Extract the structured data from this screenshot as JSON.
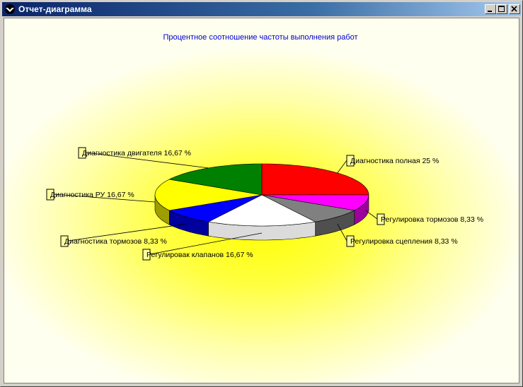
{
  "window": {
    "title": "Отчет-диаграмма"
  },
  "chart_data": {
    "type": "pie",
    "title": "Процентное соотношение частоты выполнения работ",
    "slices": [
      {
        "label": "Диагностика полная 25 %",
        "value": 25,
        "color": "#ff0000"
      },
      {
        "label": "Регулировка тормозов 8,33 %",
        "value": 8.33,
        "color": "#ff00ff"
      },
      {
        "label": "Регулировка сцепления 8,33 %",
        "value": 8.33,
        "color": "#808080"
      },
      {
        "label": "Регулировак клапанов 16,67 %",
        "value": 16.67,
        "color": "#ffffff"
      },
      {
        "label": "Диагностика тормозов 8,33 %",
        "value": 8.33,
        "color": "#0000ff"
      },
      {
        "label": "Диагностика РУ 16,67 %",
        "value": 16.67,
        "color": "#ffff00"
      },
      {
        "label": "Диагностика двигателя 16,67 %",
        "value": 16.67,
        "color": "#008000"
      }
    ],
    "start": "top",
    "direction": "clockwise",
    "style": "3d"
  }
}
